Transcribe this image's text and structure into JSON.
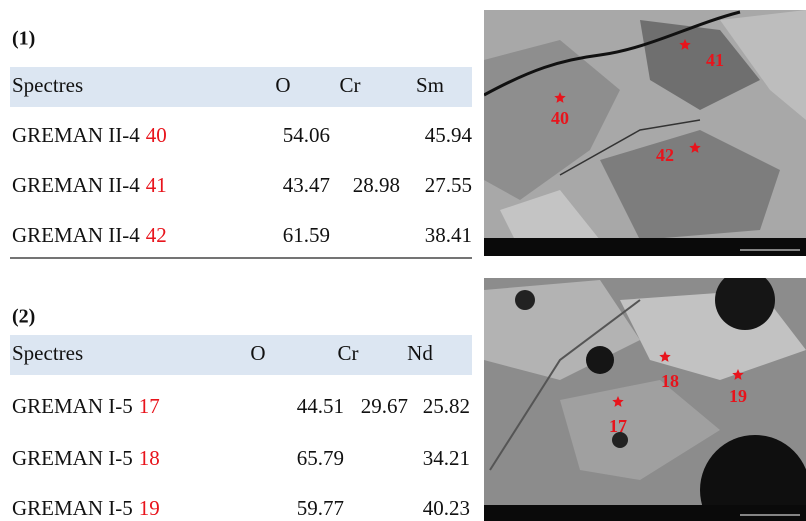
{
  "panels": [
    {
      "label": "(1)",
      "table": {
        "header": [
          "Spectres",
          "O",
          "Cr",
          "Sm"
        ],
        "rows": [
          {
            "sample": "GREMAN II-4",
            "spot": 40,
            "values": [
              54.06,
              null,
              45.94
            ]
          },
          {
            "sample": "GREMAN II-4",
            "spot": 41,
            "values": [
              43.47,
              28.98,
              27.55
            ]
          },
          {
            "sample": "GREMAN II-4",
            "spot": 42,
            "values": [
              61.59,
              null,
              38.41
            ]
          }
        ]
      },
      "image": {
        "markers": [
          "41",
          "40",
          "42"
        ]
      }
    },
    {
      "label": "(2)",
      "table": {
        "header": [
          "Spectres",
          "O",
          "Cr",
          "Nd"
        ],
        "rows": [
          {
            "sample": "GREMAN I-5",
            "spot": 17,
            "values": [
              44.51,
              29.67,
              25.82
            ]
          },
          {
            "sample": "GREMAN I-5",
            "spot": 18,
            "values": [
              65.79,
              null,
              34.21
            ]
          },
          {
            "sample": "GREMAN I-5",
            "spot": 19,
            "values": [
              59.77,
              null,
              40.23
            ]
          }
        ]
      },
      "image": {
        "markers": [
          "18",
          "17",
          "19"
        ]
      }
    }
  ]
}
